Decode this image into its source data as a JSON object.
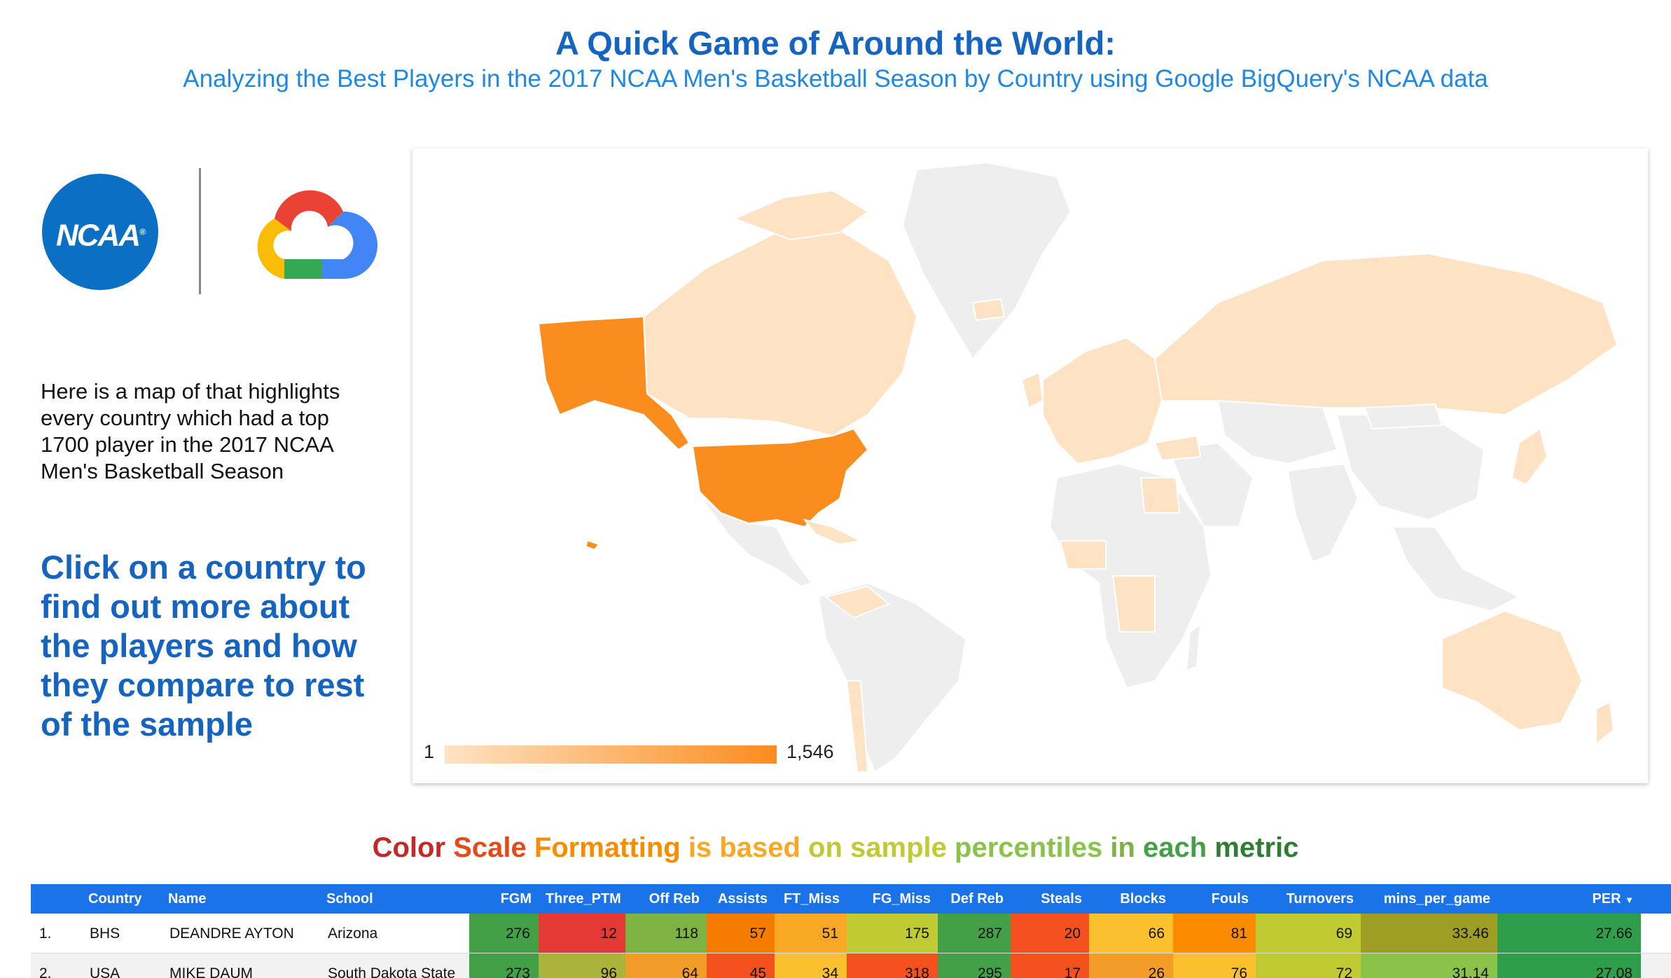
{
  "header": {
    "title": "A Quick Game of Around the World:",
    "subtitle": "Analyzing the Best Players in the 2017 NCAA Men's Basketball Season by Country using Google BigQuery's NCAA data"
  },
  "logos": {
    "ncaa_text": "NCAA",
    "ncaa_reg": "®"
  },
  "description": "Here is a map of that highlights every country which had a top 1700 player in the 2017 NCAA Men's Basketball Season",
  "call_to_action": "Click on a country to find out more about the players and how they compare to rest of the sample",
  "map": {
    "legend_min": "1",
    "legend_max": "1,546",
    "colors": {
      "low": "#fde3c4",
      "high": "#fb8c1e",
      "none": "#eeeeee"
    }
  },
  "scale_title_words": [
    {
      "text": "Color",
      "color": "#c62828"
    },
    {
      "text": "Scale",
      "color": "#e64a19"
    },
    {
      "text": "Formatting",
      "color": "#fb8c00"
    },
    {
      "text": "is",
      "color": "#f9a825"
    },
    {
      "text": "based",
      "color": "#f9a825"
    },
    {
      "text": "on",
      "color": "#c0ca33"
    },
    {
      "text": "sample",
      "color": "#c0ca33"
    },
    {
      "text": "percentiles",
      "color": "#8bc34a"
    },
    {
      "text": "in",
      "color": "#7cb342"
    },
    {
      "text": "each",
      "color": "#43a047"
    },
    {
      "text": "metric",
      "color": "#2e7d32"
    }
  ],
  "table": {
    "columns": [
      "Country",
      "Name",
      "School",
      "FGM",
      "Three_PTM",
      "Off Reb",
      "Assists",
      "FT_Miss",
      "FG_Miss",
      "Def Reb",
      "Steals",
      "Blocks",
      "Fouls",
      "Turnovers",
      "mins_per_game",
      "PER"
    ],
    "sort_indicator": "▼",
    "rows": [
      {
        "rank": "1.",
        "country": "BHS",
        "name": "DEANDRE AYTON",
        "school": "Arizona",
        "cells": [
          {
            "v": "276",
            "c": "#43a047"
          },
          {
            "v": "12",
            "c": "#e53935"
          },
          {
            "v": "118",
            "c": "#7cb342"
          },
          {
            "v": "57",
            "c": "#f57c00"
          },
          {
            "v": "51",
            "c": "#f9a825"
          },
          {
            "v": "175",
            "c": "#c0ca33"
          },
          {
            "v": "287",
            "c": "#43a047"
          },
          {
            "v": "20",
            "c": "#f4511e"
          },
          {
            "v": "66",
            "c": "#fbc02d"
          },
          {
            "v": "81",
            "c": "#fb8c00"
          },
          {
            "v": "69",
            "c": "#c0ca33"
          },
          {
            "v": "33.46",
            "c": "#9e9d24"
          },
          {
            "v": "27.66",
            "c": "#2e9e4a"
          }
        ]
      },
      {
        "rank": "2.",
        "country": "USA",
        "name": "MIKE DAUM",
        "school": "South Dakota State",
        "cells": [
          {
            "v": "273",
            "c": "#43a047"
          },
          {
            "v": "96",
            "c": "#aab33a"
          },
          {
            "v": "64",
            "c": "#f29d2a"
          },
          {
            "v": "45",
            "c": "#f4511e"
          },
          {
            "v": "34",
            "c": "#fbc02d"
          },
          {
            "v": "318",
            "c": "#f4511e"
          },
          {
            "v": "295",
            "c": "#43a047"
          },
          {
            "v": "17",
            "c": "#f4511e"
          },
          {
            "v": "26",
            "c": "#f29d2a"
          },
          {
            "v": "76",
            "c": "#fbc02d"
          },
          {
            "v": "72",
            "c": "#c0ca33"
          },
          {
            "v": "31.14",
            "c": "#8bc34a"
          },
          {
            "v": "27.08",
            "c": "#2e9e4a"
          }
        ]
      }
    ]
  }
}
